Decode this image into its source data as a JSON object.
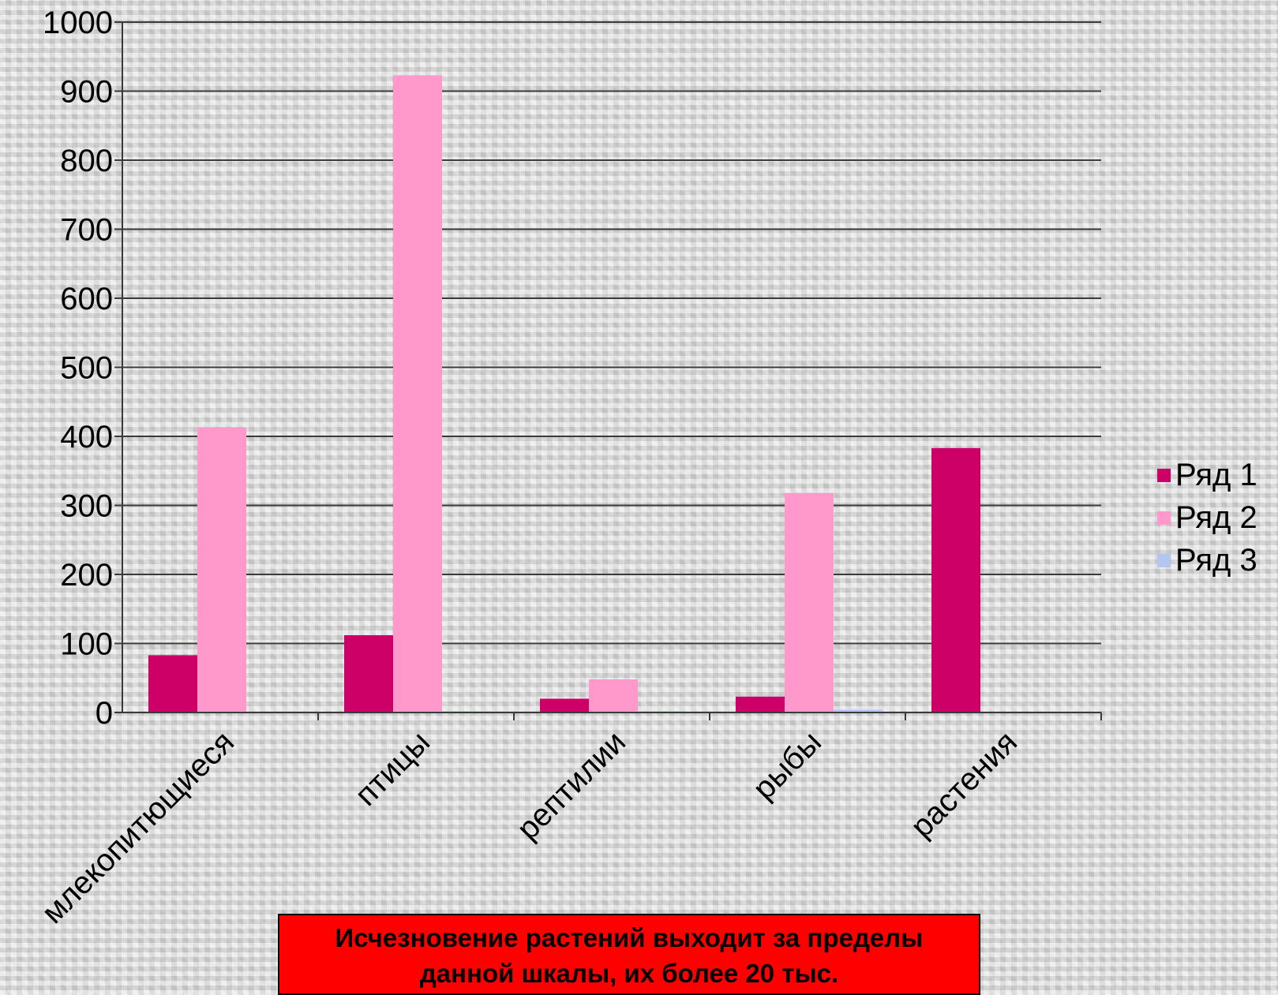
{
  "chart_data": {
    "type": "bar",
    "categories": [
      "млекопитющиеся",
      "птицы",
      "рептилии",
      "рыбы",
      "растения"
    ],
    "series": [
      {
        "name": "Ряд 1",
        "color": "#cc0066",
        "values": [
          83,
          112,
          20,
          23,
          383
        ]
      },
      {
        "name": "Ряд 2",
        "color": "#ff99cc",
        "values": [
          413,
          923,
          48,
          318,
          0
        ]
      },
      {
        "name": "Ряд 3",
        "color": "#b3c6f0",
        "values": [
          0,
          2,
          2,
          4,
          0
        ]
      }
    ],
    "ylim": [
      0,
      1000
    ],
    "yticks": [
      "0",
      "100",
      "200",
      "300",
      "400",
      "500",
      "600",
      "700",
      "800",
      "900",
      "1000"
    ],
    "grid": true,
    "legend_position": "right"
  },
  "note": {
    "line1": "Исчезновение растений выходит за пределы",
    "line2": "данной шкалы, их более 20 тыс."
  }
}
